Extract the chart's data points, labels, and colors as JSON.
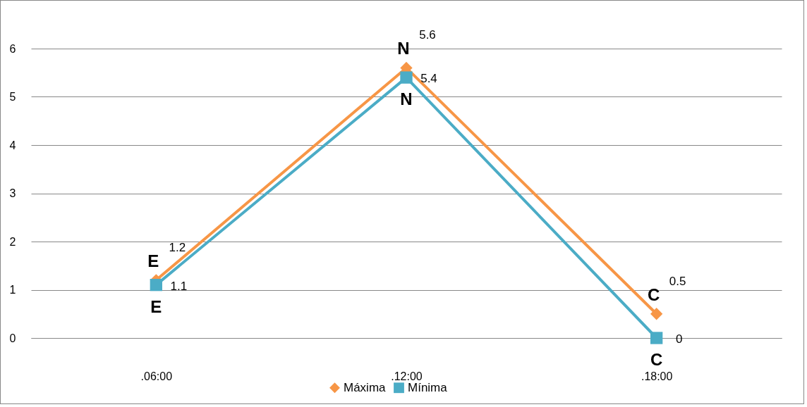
{
  "chart_data": {
    "type": "line",
    "categories": [
      ".06:00",
      ".12:00",
      ".18:00"
    ],
    "series": [
      {
        "name": "Máxima",
        "color": "#f79646",
        "marker": "diamond",
        "values": [
          1.2,
          5.6,
          0.5
        ]
      },
      {
        "name": "Mínima",
        "color": "#4bacc6",
        "marker": "square",
        "values": [
          1.1,
          5.4,
          0
        ]
      }
    ],
    "ylim": [
      0,
      6
    ],
    "yticks": [
      0,
      1,
      2,
      3,
      4,
      5,
      6
    ],
    "grid": "y",
    "legend": "bottom",
    "data_labels": true,
    "annotations": [
      {
        "text": "E",
        "x": ".06:00",
        "y": 1.2
      },
      {
        "text": "E",
        "x": ".06:00",
        "y": 1.1
      },
      {
        "text": "N",
        "x": ".12:00",
        "y": 5.6
      },
      {
        "text": "N",
        "x": ".12:00",
        "y": 5.4
      },
      {
        "text": "C",
        "x": ".18:00",
        "y": 0.5
      },
      {
        "text": "C",
        "x": ".18:00",
        "y": 0
      }
    ]
  }
}
